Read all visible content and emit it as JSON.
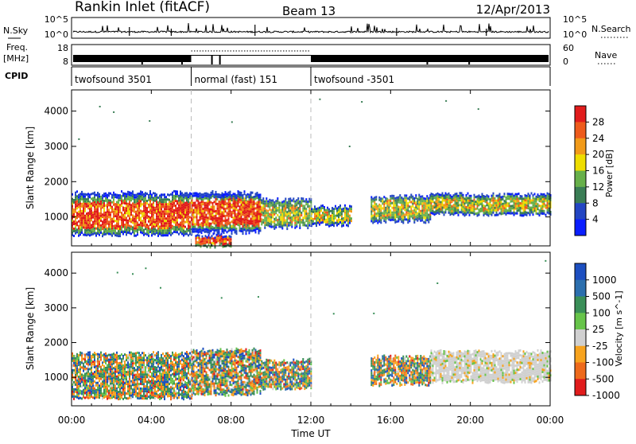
{
  "header": {
    "station": "Rankin Inlet (fitACF)",
    "beam": "Beam 13",
    "date": "12/Apr/2013"
  },
  "noise_panel": {
    "left_label": "N.Sky",
    "right_label": "N.Search",
    "left_ticks": [
      "10^5",
      "10^0"
    ],
    "right_ticks": [
      "10^5",
      "10^0"
    ]
  },
  "freq_panel": {
    "left_label": "Freq.",
    "left_unit": "[MHz]",
    "left_ticks": [
      "18",
      "8"
    ],
    "right_label": "Nave",
    "right_ticks": [
      "60",
      "0"
    ]
  },
  "cpid": {
    "label": "CPID",
    "segments": [
      {
        "name": "twofsound 3501",
        "start_hour": 0,
        "end_hour": 6
      },
      {
        "name": "normal (fast) 151",
        "start_hour": 6,
        "end_hour": 12
      },
      {
        "name": "twofsound -3501",
        "start_hour": 12,
        "end_hour": 24
      }
    ]
  },
  "chart_data": [
    {
      "type": "heatmap",
      "title": "",
      "quantity": "Power",
      "xlabel": "",
      "ylabel": "Slant Range [km]",
      "xlim_hours": [
        0,
        24
      ],
      "ylim_km": [
        180,
        4600
      ],
      "yticks": [
        "1000",
        "2000",
        "3000",
        "4000"
      ],
      "colorbar_label": "Power [dB]",
      "colorbar_ticks": [
        "4",
        "8",
        "12",
        "16",
        "20",
        "24",
        "28"
      ],
      "colorbar_colors": [
        "#0a1eff",
        "#2346c3",
        "#3a7d55",
        "#67b04a",
        "#eedd00",
        "#f19a19",
        "#ee5b1c",
        "#e11c1c"
      ],
      "echo_regions": [
        {
          "start_hour": 0.0,
          "end_hour": 6.0,
          "low_km": 500,
          "high_km": 1700,
          "level": "high"
        },
        {
          "start_hour": 6.0,
          "end_hour": 9.5,
          "low_km": 600,
          "high_km": 1700,
          "level": "high"
        },
        {
          "start_hour": 9.5,
          "end_hour": 12.0,
          "low_km": 700,
          "high_km": 1500,
          "level": "medium"
        },
        {
          "start_hour": 12.0,
          "end_hour": 14.0,
          "low_km": 800,
          "high_km": 1300,
          "level": "medium"
        },
        {
          "start_hour": 15.0,
          "end_hour": 18.0,
          "low_km": 900,
          "high_km": 1600,
          "level": "medium"
        },
        {
          "start_hour": 18.0,
          "end_hour": 24.0,
          "low_km": 1100,
          "high_km": 1650,
          "level": "medium"
        },
        {
          "start_hour": 6.2,
          "end_hour": 8.0,
          "low_km": 180,
          "high_km": 500,
          "level": "high"
        }
      ]
    },
    {
      "type": "heatmap",
      "title": "",
      "quantity": "Velocity",
      "xlabel": "Time UT",
      "ylabel": "Slant Range [km]",
      "xlim_hours": [
        0,
        24
      ],
      "ylim_km": [
        180,
        4600
      ],
      "xticks": [
        "00:00",
        "04:00",
        "08:00",
        "12:00",
        "16:00",
        "20:00",
        "00:00"
      ],
      "yticks": [
        "1000",
        "2000",
        "3000",
        "4000"
      ],
      "colorbar_label": "Velocity [m s^-1]",
      "colorbar_ticks": [
        "1000",
        "500",
        "100",
        "25",
        "-25",
        "-100",
        "-500",
        "-1000"
      ],
      "colorbar_colors": [
        "#1d4fc0",
        "#2c6fae",
        "#3a8f58",
        "#67c44a",
        "#d0d0d0",
        "#f7a31e",
        "#ee6a1b",
        "#e11c1c"
      ],
      "echo_regions": [
        {
          "start_hour": 0.0,
          "end_hour": 6.0,
          "low_km": 400,
          "high_km": 1700,
          "level": "mixed"
        },
        {
          "start_hour": 6.0,
          "end_hour": 9.5,
          "low_km": 500,
          "high_km": 1800,
          "level": "mixed"
        },
        {
          "start_hour": 9.5,
          "end_hour": 12.0,
          "low_km": 700,
          "high_km": 1500,
          "level": "mixed"
        },
        {
          "start_hour": 15.0,
          "end_hour": 18.0,
          "low_km": 800,
          "high_km": 1600,
          "level": "mixed"
        },
        {
          "start_hour": 18.0,
          "end_hour": 24.0,
          "low_km": 900,
          "high_km": 1750,
          "level": "slow"
        }
      ]
    }
  ]
}
